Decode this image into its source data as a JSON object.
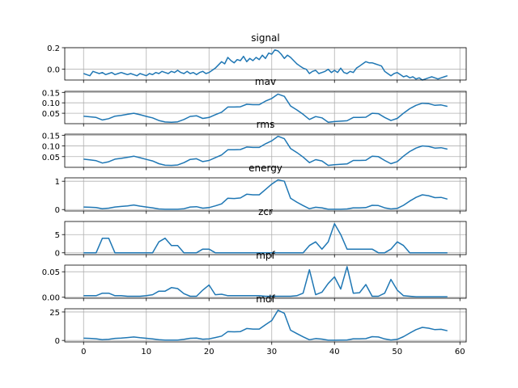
{
  "chart_data": [
    {
      "type": "line",
      "title": "signal",
      "x": [
        0,
        0.5,
        1,
        1.5,
        2,
        2.5,
        3,
        3.5,
        4,
        4.5,
        5,
        5.5,
        6,
        6.5,
        7,
        7.5,
        8,
        8.5,
        9,
        9.5,
        10,
        10.5,
        11,
        11.5,
        12,
        12.5,
        13,
        13.5,
        14,
        14.5,
        15,
        15.5,
        16,
        16.5,
        17,
        17.5,
        18,
        18.5,
        19,
        19.5,
        20,
        20.5,
        21,
        21.5,
        22,
        22.5,
        23,
        23.5,
        24,
        24.5,
        25,
        25.5,
        26,
        26.5,
        27,
        27.5,
        28,
        28.5,
        29,
        29.5,
        30,
        30.5,
        31,
        31.5,
        32,
        32.5,
        33,
        33.5,
        34,
        34.5,
        35,
        35.5,
        36,
        36.5,
        37,
        37.5,
        38,
        38.5,
        39,
        39.5,
        40,
        40.5,
        41,
        41.5,
        42,
        42.5,
        43,
        43.5,
        44,
        44.5,
        45,
        45.5,
        46,
        46.5,
        47,
        47.5,
        48,
        48.5,
        49,
        49.5,
        50,
        50.5,
        51,
        51.5,
        52,
        52.5,
        53,
        53.5,
        54,
        54.5,
        55,
        55.5,
        56,
        56.5,
        57,
        57.5,
        58
      ],
      "series": [
        {
          "values": [
            -0.04,
            -0.05,
            -0.06,
            -0.02,
            -0.03,
            -0.04,
            -0.03,
            -0.05,
            -0.04,
            -0.03,
            -0.05,
            -0.04,
            -0.03,
            -0.04,
            -0.05,
            -0.04,
            -0.05,
            -0.06,
            -0.04,
            -0.05,
            -0.06,
            -0.04,
            -0.05,
            -0.03,
            -0.04,
            -0.02,
            -0.03,
            -0.04,
            -0.02,
            -0.03,
            -0.01,
            -0.03,
            -0.04,
            -0.02,
            -0.04,
            -0.03,
            -0.05,
            -0.03,
            -0.02,
            -0.04,
            -0.03,
            -0.01,
            0.01,
            0.04,
            0.07,
            0.05,
            0.11,
            0.08,
            0.06,
            0.09,
            0.08,
            0.12,
            0.07,
            0.1,
            0.08,
            0.11,
            0.09,
            0.13,
            0.1,
            0.15,
            0.14,
            0.18,
            0.17,
            0.14,
            0.1,
            0.13,
            0.11,
            0.08,
            0.05,
            0.03,
            0.01,
            0.0,
            -0.04,
            -0.02,
            -0.01,
            -0.04,
            -0.03,
            -0.02,
            0.0,
            -0.03,
            -0.01,
            -0.03,
            0.01,
            -0.03,
            -0.04,
            -0.02,
            -0.03,
            0.01,
            0.03,
            0.05,
            0.07,
            0.06,
            0.06,
            0.05,
            0.04,
            0.03,
            -0.02,
            -0.04,
            -0.06,
            -0.04,
            -0.03,
            -0.05,
            -0.07,
            -0.06,
            -0.08,
            -0.07,
            -0.09,
            -0.08,
            -0.1,
            -0.09,
            -0.08,
            -0.07,
            -0.08,
            -0.09,
            -0.08,
            -0.07,
            -0.06
          ]
        }
      ],
      "xlim": [
        -3,
        61
      ],
      "ylim": [
        -0.1,
        0.2
      ],
      "yticks": [
        0.0,
        0.2
      ],
      "ytick_labels": [
        "0.0",
        "0.2"
      ],
      "xticks": [
        0,
        10,
        20,
        30,
        40,
        50,
        60
      ],
      "grid": true,
      "color": "#1f77b4"
    },
    {
      "type": "line",
      "title": "mav",
      "x": [
        0,
        1,
        2,
        3,
        4,
        5,
        6,
        7,
        8,
        9,
        10,
        11,
        12,
        13,
        14,
        15,
        16,
        17,
        18,
        19,
        20,
        21,
        22,
        23,
        24,
        25,
        26,
        27,
        28,
        29,
        30,
        31,
        32,
        33,
        34,
        35,
        36,
        37,
        38,
        39,
        40,
        41,
        42,
        43,
        44,
        45,
        46,
        47,
        48,
        49,
        50,
        51,
        52,
        53,
        54,
        55,
        56,
        57,
        58
      ],
      "series": [
        {
          "values": [
            0.036,
            0.033,
            0.03,
            0.018,
            0.024,
            0.036,
            0.04,
            0.045,
            0.05,
            0.043,
            0.035,
            0.028,
            0.015,
            0.008,
            0.007,
            0.009,
            0.02,
            0.035,
            0.038,
            0.025,
            0.03,
            0.043,
            0.055,
            0.08,
            0.08,
            0.081,
            0.093,
            0.091,
            0.091,
            0.108,
            0.121,
            0.142,
            0.131,
            0.085,
            0.066,
            0.045,
            0.02,
            0.034,
            0.028,
            0.007,
            0.01,
            0.012,
            0.014,
            0.03,
            0.03,
            0.031,
            0.05,
            0.048,
            0.03,
            0.015,
            0.025,
            0.05,
            0.072,
            0.088,
            0.098,
            0.096,
            0.088,
            0.09,
            0.083
          ]
        }
      ],
      "xlim": [
        -3,
        61
      ],
      "ylim": [
        0,
        0.155
      ],
      "yticks": [
        0.05,
        0.1,
        0.15
      ],
      "ytick_labels": [
        "0.05",
        "0.10",
        "0.15"
      ],
      "xticks": [
        0,
        10,
        20,
        30,
        40,
        50,
        60
      ],
      "grid": true,
      "color": "#1f77b4"
    },
    {
      "type": "line",
      "title": "rms",
      "x": [
        0,
        1,
        2,
        3,
        4,
        5,
        6,
        7,
        8,
        9,
        10,
        11,
        12,
        13,
        14,
        15,
        16,
        17,
        18,
        19,
        20,
        21,
        22,
        23,
        24,
        25,
        26,
        27,
        28,
        29,
        30,
        31,
        32,
        33,
        34,
        35,
        36,
        37,
        38,
        39,
        40,
        41,
        42,
        43,
        44,
        45,
        46,
        47,
        48,
        49,
        50,
        51,
        52,
        53,
        54,
        55,
        56,
        57,
        58
      ],
      "series": [
        {
          "values": [
            0.038,
            0.035,
            0.031,
            0.02,
            0.026,
            0.038,
            0.042,
            0.047,
            0.052,
            0.045,
            0.037,
            0.03,
            0.017,
            0.01,
            0.009,
            0.011,
            0.022,
            0.037,
            0.04,
            0.027,
            0.032,
            0.045,
            0.058,
            0.082,
            0.082,
            0.083,
            0.095,
            0.093,
            0.093,
            0.11,
            0.124,
            0.145,
            0.134,
            0.088,
            0.069,
            0.048,
            0.022,
            0.036,
            0.03,
            0.009,
            0.012,
            0.014,
            0.016,
            0.032,
            0.032,
            0.033,
            0.052,
            0.05,
            0.032,
            0.017,
            0.027,
            0.052,
            0.074,
            0.09,
            0.1,
            0.098,
            0.09,
            0.092,
            0.085
          ]
        }
      ],
      "xlim": [
        -3,
        61
      ],
      "ylim": [
        0,
        0.155
      ],
      "yticks": [
        0.05,
        0.1,
        0.15
      ],
      "ytick_labels": [
        "0.05",
        "0.10",
        "0.15"
      ],
      "xticks": [
        0,
        10,
        20,
        30,
        40,
        50,
        60
      ],
      "grid": true,
      "color": "#1f77b4"
    },
    {
      "type": "line",
      "title": "energy",
      "x": [
        0,
        1,
        2,
        3,
        4,
        5,
        6,
        7,
        8,
        9,
        10,
        11,
        12,
        13,
        14,
        15,
        16,
        17,
        18,
        19,
        20,
        21,
        22,
        23,
        24,
        25,
        26,
        27,
        28,
        29,
        30,
        31,
        32,
        33,
        34,
        35,
        36,
        37,
        38,
        39,
        40,
        41,
        42,
        43,
        44,
        45,
        46,
        47,
        48,
        49,
        50,
        51,
        52,
        53,
        54,
        55,
        56,
        57,
        58
      ],
      "series": [
        {
          "values": [
            0.09,
            0.08,
            0.07,
            0.03,
            0.05,
            0.09,
            0.11,
            0.13,
            0.16,
            0.12,
            0.09,
            0.06,
            0.02,
            0.01,
            0.01,
            0.01,
            0.03,
            0.09,
            0.1,
            0.05,
            0.07,
            0.13,
            0.2,
            0.4,
            0.39,
            0.41,
            0.54,
            0.52,
            0.52,
            0.71,
            0.9,
            1.05,
            1.0,
            0.4,
            0.26,
            0.14,
            0.03,
            0.08,
            0.06,
            0.01,
            0.01,
            0.01,
            0.02,
            0.06,
            0.06,
            0.07,
            0.15,
            0.14,
            0.06,
            0.02,
            0.04,
            0.15,
            0.3,
            0.43,
            0.52,
            0.49,
            0.42,
            0.43,
            0.37
          ]
        }
      ],
      "xlim": [
        -3,
        61
      ],
      "ylim": [
        -0.05,
        1.12
      ],
      "yticks": [
        0,
        1
      ],
      "ytick_labels": [
        "0",
        "1"
      ],
      "xticks": [
        0,
        10,
        20,
        30,
        40,
        50,
        60
      ],
      "grid": true,
      "color": "#1f77b4"
    },
    {
      "type": "line",
      "title": "zcr",
      "x": [
        0,
        1,
        2,
        3,
        4,
        5,
        6,
        7,
        8,
        9,
        10,
        11,
        12,
        13,
        14,
        15,
        16,
        17,
        18,
        19,
        20,
        21,
        22,
        23,
        24,
        25,
        26,
        27,
        28,
        29,
        30,
        31,
        32,
        33,
        34,
        35,
        36,
        37,
        38,
        39,
        40,
        41,
        42,
        43,
        44,
        45,
        46,
        47,
        48,
        49,
        50,
        51,
        52,
        53,
        54,
        55,
        56,
        57,
        58
      ],
      "series": [
        {
          "values": [
            0,
            0,
            0,
            4,
            4,
            0,
            0,
            0,
            0,
            0,
            0,
            0,
            3,
            4,
            2,
            2,
            0,
            0,
            0,
            1,
            1,
            0,
            0,
            0,
            0,
            0,
            0,
            0,
            0,
            0,
            0,
            0,
            0,
            0,
            0,
            0,
            2,
            3,
            1,
            3,
            8,
            5,
            1,
            1,
            1,
            1,
            1,
            0,
            0,
            1,
            3,
            2,
            0,
            0,
            0,
            0,
            0,
            0,
            0
          ]
        }
      ],
      "xlim": [
        -3,
        61
      ],
      "ylim": [
        -0.5,
        8.6
      ],
      "yticks": [
        0,
        5
      ],
      "ytick_labels": [
        "0",
        "5"
      ],
      "xticks": [
        0,
        10,
        20,
        30,
        40,
        50,
        60
      ],
      "grid": true,
      "color": "#1f77b4"
    },
    {
      "type": "line",
      "title": "mpf",
      "x": [
        0,
        1,
        2,
        3,
        4,
        5,
        6,
        7,
        8,
        9,
        10,
        11,
        12,
        13,
        14,
        15,
        16,
        17,
        18,
        19,
        20,
        21,
        22,
        23,
        24,
        25,
        26,
        27,
        28,
        29,
        30,
        31,
        32,
        33,
        34,
        35,
        36,
        37,
        38,
        39,
        40,
        41,
        42,
        43,
        44,
        45,
        46,
        47,
        48,
        49,
        50,
        51,
        52,
        53,
        54,
        55,
        56,
        57,
        58
      ],
      "series": [
        {
          "values": [
            0.003,
            0.003,
            0.003,
            0.008,
            0.008,
            0.003,
            0.003,
            0.002,
            0.002,
            0.002,
            0.003,
            0.005,
            0.012,
            0.012,
            0.019,
            0.017,
            0.007,
            0.002,
            0.002,
            0.014,
            0.024,
            0.005,
            0.006,
            0.003,
            0.003,
            0.003,
            0.003,
            0.003,
            0.003,
            0.002,
            0.002,
            0.002,
            0.002,
            0.002,
            0.003,
            0.008,
            0.054,
            0.005,
            0.01,
            0.027,
            0.04,
            0.016,
            0.06,
            0.008,
            0.009,
            0.025,
            0.002,
            0.002,
            0.008,
            0.035,
            0.014,
            0.003,
            0.002,
            0.001,
            0.001,
            0.001,
            0.001,
            0.001,
            0.001
          ]
        }
      ],
      "xlim": [
        -3,
        61
      ],
      "ylim": [
        -0.002,
        0.063
      ],
      "yticks": [
        0.0,
        0.05
      ],
      "ytick_labels": [
        "0.00",
        "0.05"
      ],
      "xticks": [
        0,
        10,
        20,
        30,
        40,
        50,
        60
      ],
      "grid": true,
      "color": "#1f77b4"
    },
    {
      "type": "line",
      "title": "mdf",
      "x": [
        0,
        1,
        2,
        3,
        4,
        5,
        6,
        7,
        8,
        9,
        10,
        11,
        12,
        13,
        14,
        15,
        16,
        17,
        18,
        19,
        20,
        21,
        22,
        23,
        24,
        25,
        26,
        27,
        28,
        29,
        30,
        31,
        32,
        33,
        34,
        35,
        36,
        37,
        38,
        39,
        40,
        41,
        42,
        43,
        44,
        45,
        46,
        47,
        48,
        49,
        50,
        51,
        52,
        53,
        54,
        55,
        56,
        57,
        58
      ],
      "series": [
        {
          "values": [
            2.0,
            1.8,
            1.5,
            0.7,
            1.0,
            1.8,
            2.1,
            2.5,
            3.0,
            2.4,
            1.9,
            1.4,
            0.6,
            0.3,
            0.3,
            0.3,
            1.0,
            1.9,
            2.1,
            1.1,
            1.4,
            2.5,
            3.8,
            7.8,
            7.6,
            7.8,
            10.5,
            10.0,
            10.0,
            13.8,
            17.5,
            26.5,
            23.8,
            9.0,
            6.0,
            3.2,
            0.6,
            1.7,
            1.2,
            0.2,
            0.2,
            0.3,
            0.4,
            1.5,
            1.5,
            1.6,
            3.3,
            3.0,
            1.3,
            0.4,
            1.0,
            3.3,
            6.5,
            9.5,
            11.5,
            10.8,
            9.5,
            9.8,
            8.5
          ]
        }
      ],
      "xlim": [
        -3,
        61
      ],
      "ylim": [
        -1.3,
        27.8
      ],
      "yticks": [
        0,
        25
      ],
      "ytick_labels": [
        "0",
        "25"
      ],
      "xticks": [
        0,
        10,
        20,
        30,
        40,
        50,
        60
      ],
      "xtick_labels": [
        "0",
        "10",
        "20",
        "30",
        "40",
        "50",
        "60"
      ],
      "grid": true,
      "color": "#1f77b4"
    }
  ]
}
